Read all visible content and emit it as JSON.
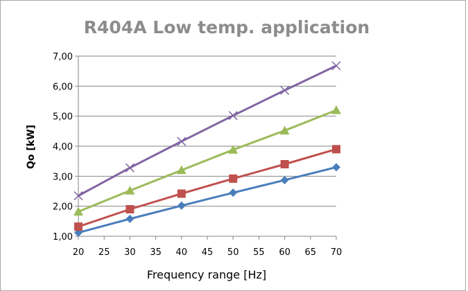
{
  "chart_data": {
    "type": "line",
    "title": "R404A Low temp. application",
    "xlabel": "Frequency range [Hz]",
    "ylabel": "Qo [kW]",
    "xlim": [
      20,
      70
    ],
    "ylim": [
      1,
      7
    ],
    "x_ticks": [
      "20",
      "25",
      "30",
      "35",
      "40",
      "45",
      "50",
      "55",
      "60",
      "65",
      "70"
    ],
    "y_ticks": [
      "1,00",
      "2,00",
      "3,00",
      "4,00",
      "5,00",
      "6,00",
      "7,00"
    ],
    "grid": true,
    "legend": "none",
    "series": [
      {
        "marker": "diamond",
        "color": "#4a7ebb",
        "x": [
          20,
          30,
          40,
          50,
          60,
          70
        ],
        "y": [
          1.12,
          1.58,
          2.02,
          2.45,
          2.87,
          3.3
        ]
      },
      {
        "marker": "square",
        "color": "#c0504d",
        "x": [
          20,
          30,
          40,
          50,
          60,
          70
        ],
        "y": [
          1.32,
          1.9,
          2.42,
          2.92,
          3.4,
          3.9
        ]
      },
      {
        "marker": "triangle",
        "color": "#9bbb59",
        "x": [
          20,
          30,
          40,
          50,
          60,
          70
        ],
        "y": [
          1.82,
          2.52,
          3.2,
          3.88,
          4.52,
          5.2
        ]
      },
      {
        "marker": "x",
        "color": "#8064a2",
        "x": [
          20,
          30,
          40,
          50,
          60,
          70
        ],
        "y": [
          2.35,
          3.28,
          4.16,
          5.02,
          5.86,
          6.68
        ]
      }
    ]
  }
}
